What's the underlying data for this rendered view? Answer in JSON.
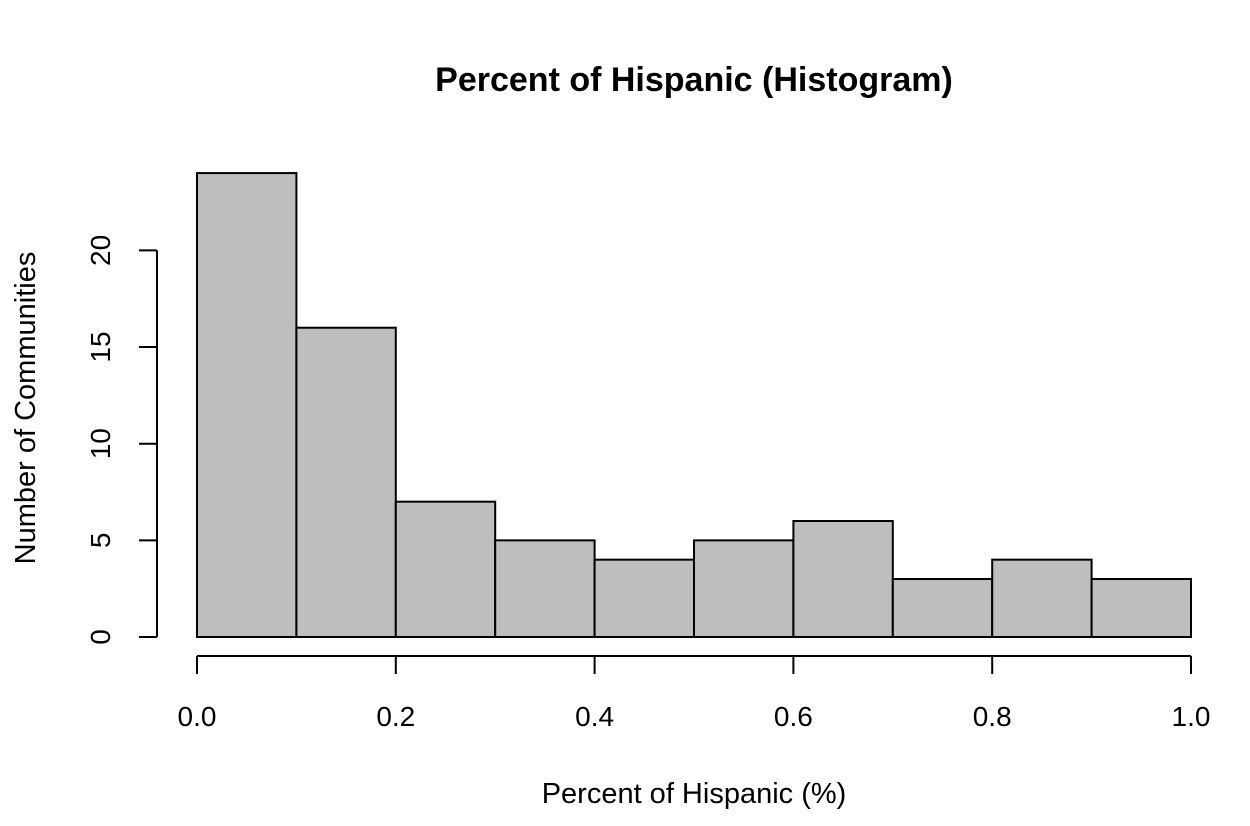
{
  "chart_data": {
    "type": "bar",
    "subtype": "histogram",
    "title": "Percent of Hispanic (Histogram)",
    "xlabel": "Percent of Hispanic (%)",
    "ylabel": "Number of Communities",
    "bin_edges": [
      0.0,
      0.1,
      0.2,
      0.3,
      0.4,
      0.5,
      0.6,
      0.7,
      0.8,
      0.9,
      1.0
    ],
    "values": [
      24,
      16,
      7,
      5,
      4,
      5,
      6,
      3,
      4,
      3
    ],
    "xlim": [
      0.0,
      1.0
    ],
    "ylim": [
      0,
      24
    ],
    "x_ticks": [
      "0.0",
      "0.2",
      "0.4",
      "0.6",
      "0.8",
      "1.0"
    ],
    "y_ticks": [
      "0",
      "5",
      "10",
      "15",
      "20"
    ],
    "bar_color": "#bebebe",
    "grid": false
  }
}
